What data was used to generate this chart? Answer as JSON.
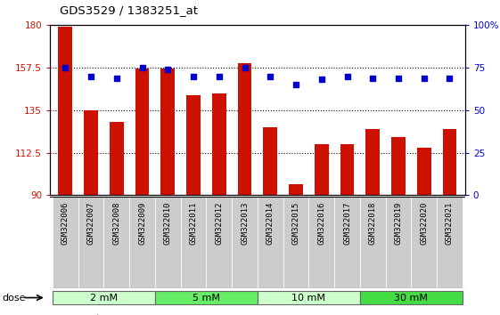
{
  "title": "GDS3529 / 1383251_at",
  "samples": [
    "GSM322006",
    "GSM322007",
    "GSM322008",
    "GSM322009",
    "GSM322010",
    "GSM322011",
    "GSM322012",
    "GSM322013",
    "GSM322014",
    "GSM322015",
    "GSM322016",
    "GSM322017",
    "GSM322018",
    "GSM322019",
    "GSM322020",
    "GSM322021"
  ],
  "counts": [
    179,
    135,
    129,
    157,
    157,
    143,
    144,
    160,
    126,
    96,
    117,
    117,
    125,
    121,
    115,
    125
  ],
  "percentiles": [
    75,
    70,
    69,
    75,
    74,
    70,
    70,
    75,
    70,
    65,
    68,
    70,
    69,
    69,
    69,
    69
  ],
  "groups": [
    {
      "label": "2 mM",
      "start": 0,
      "end": 3,
      "color": "#ccffcc"
    },
    {
      "label": "5 mM",
      "start": 4,
      "end": 7,
      "color": "#66ee66"
    },
    {
      "label": "10 mM",
      "start": 8,
      "end": 11,
      "color": "#ccffcc"
    },
    {
      "label": "30 mM",
      "start": 12,
      "end": 15,
      "color": "#44dd44"
    }
  ],
  "bar_color": "#cc1100",
  "dot_color": "#0000cc",
  "ylim_left": [
    90,
    180
  ],
  "ylim_right": [
    0,
    100
  ],
  "yticks_left": [
    90,
    112.5,
    135,
    157.5,
    180
  ],
  "yticks_right": [
    0,
    25,
    50,
    75,
    100
  ],
  "background_color": "#ffffff",
  "plot_bg_color": "#ffffff",
  "xticklabel_bg": "#cccccc",
  "tick_label_color_left": "#cc1100",
  "tick_label_color_right": "#0000cc"
}
